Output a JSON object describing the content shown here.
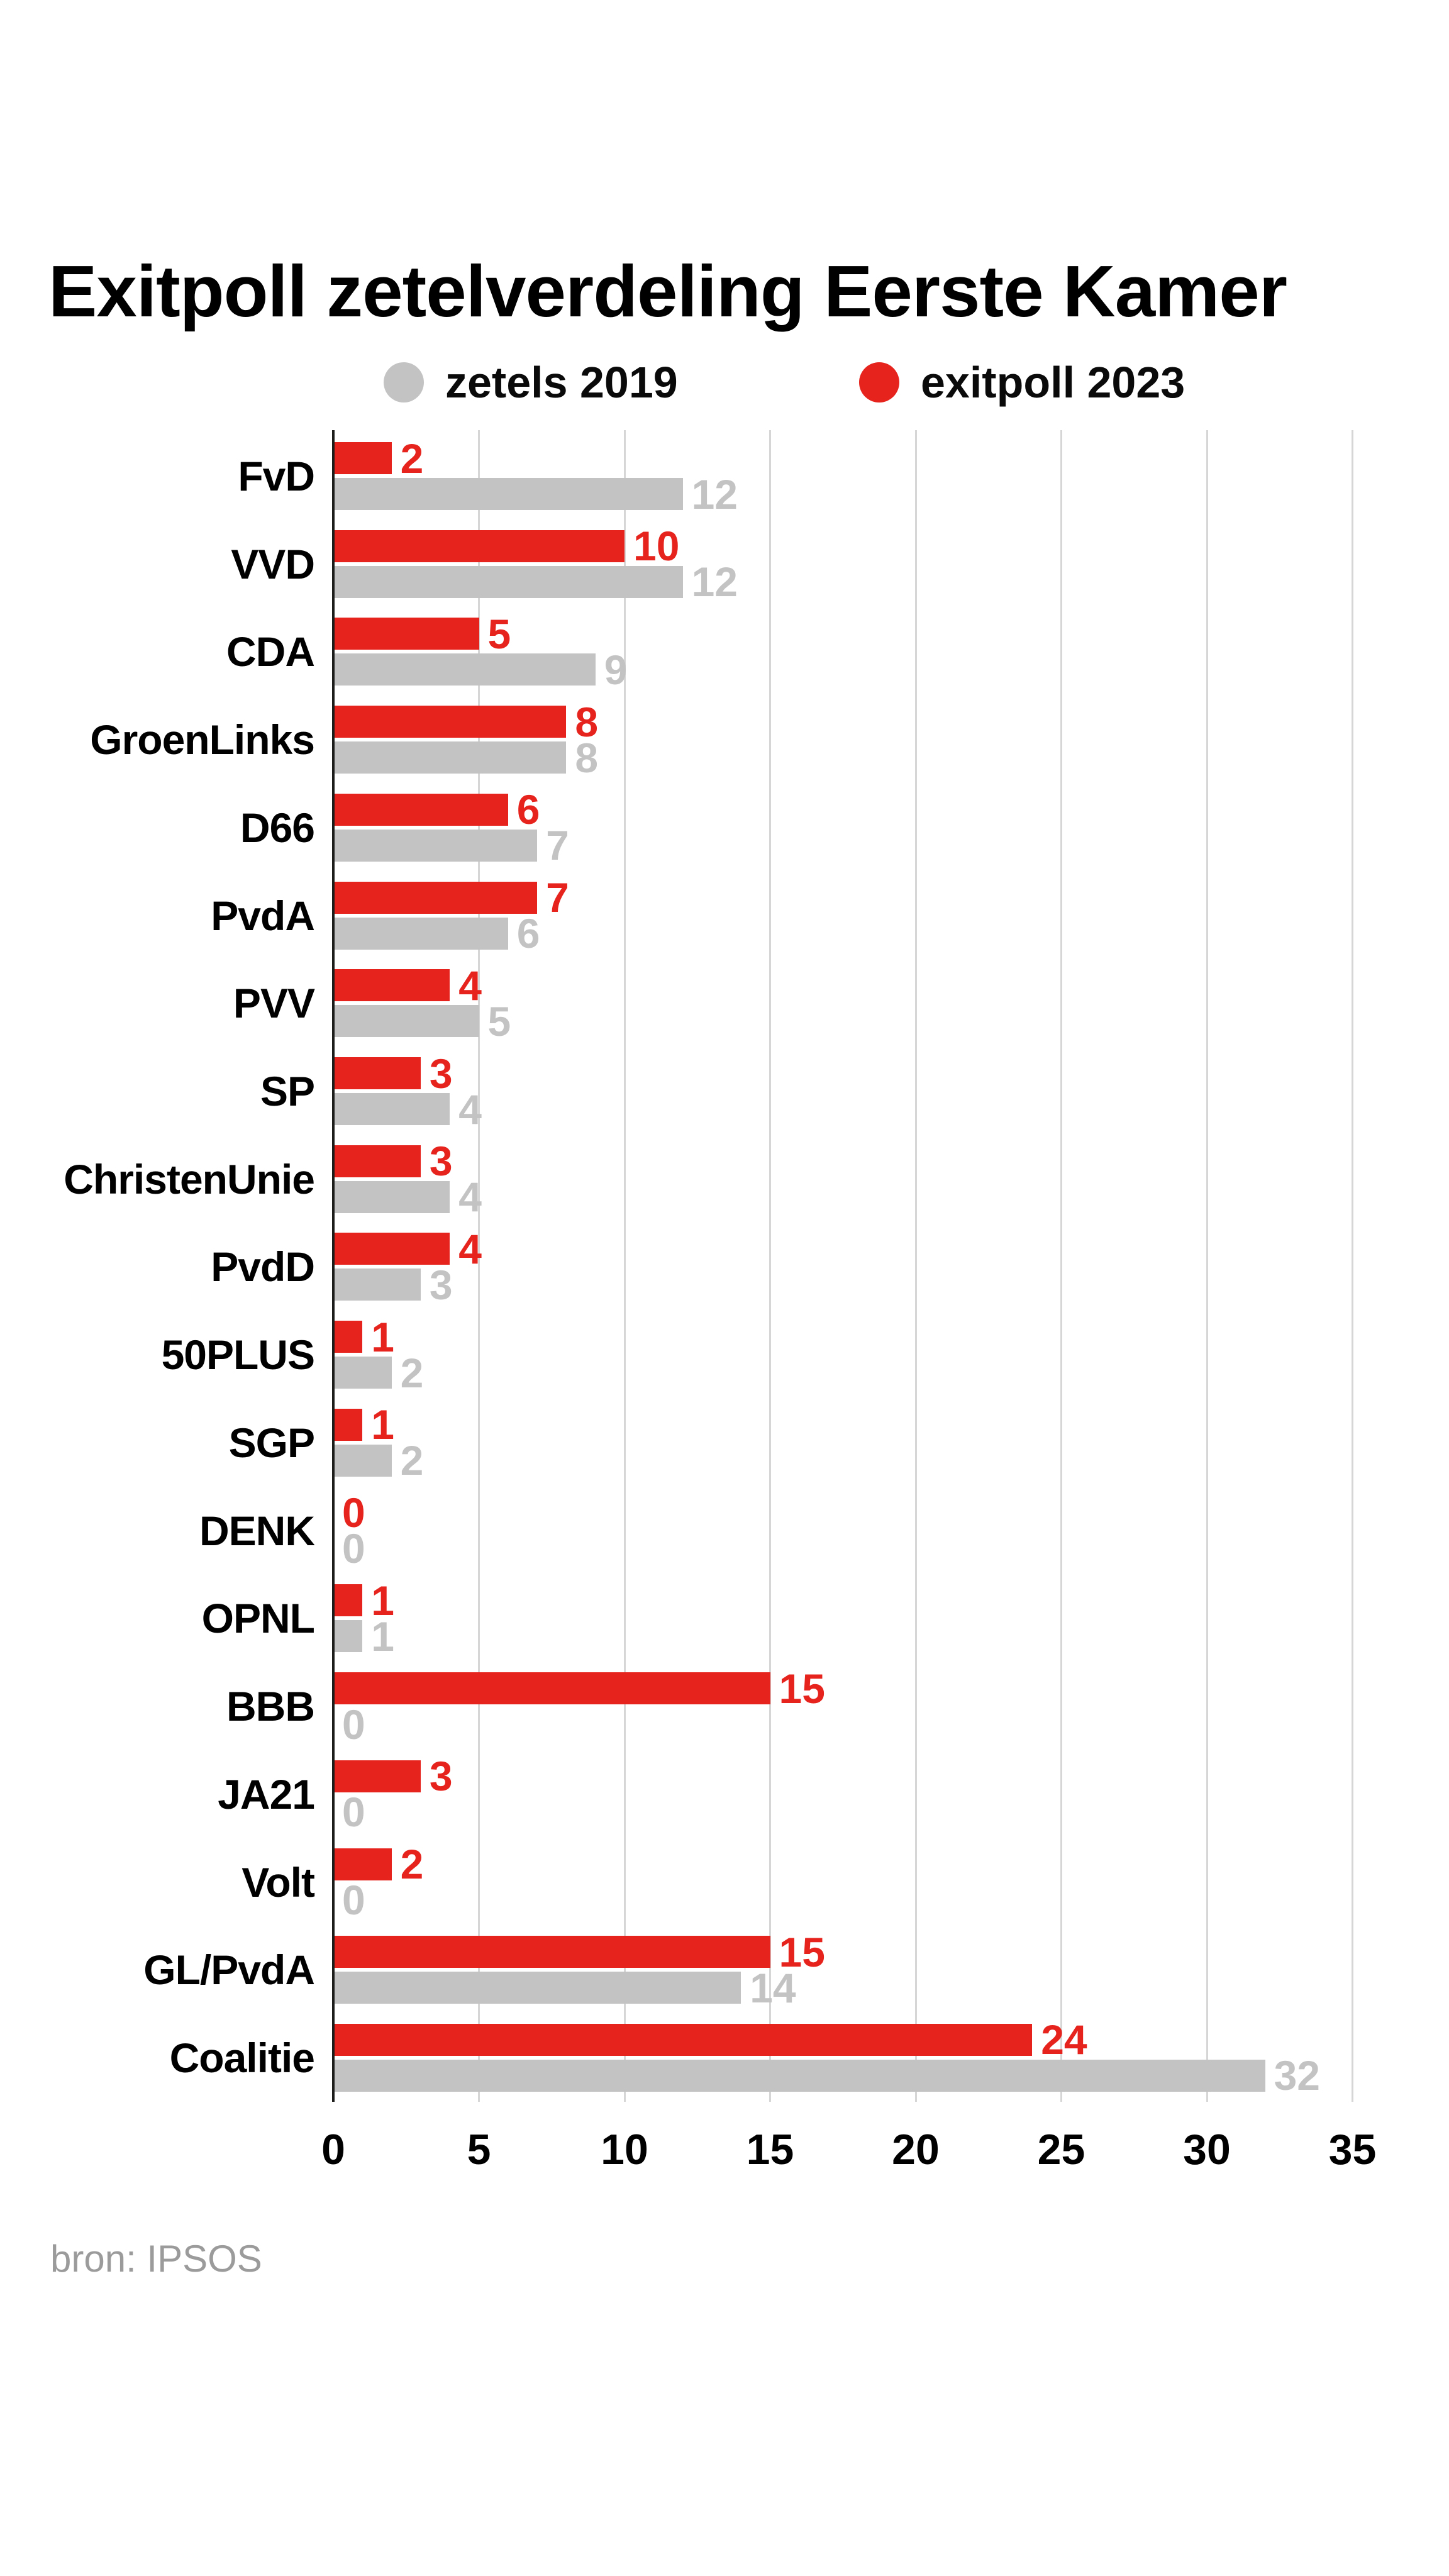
{
  "title": "Exitpoll zetelverdeling Eerste Kamer",
  "source": "bron: IPSOS",
  "legend": {
    "items": [
      {
        "label": "zetels 2019",
        "color": "#c3c3c3"
      },
      {
        "label": "exitpoll 2023",
        "color": "#e6231d"
      }
    ]
  },
  "colors": {
    "background": "#ffffff",
    "bar_exitpoll_2023": "#e6231d",
    "bar_zetels_2019": "#c3c3c3",
    "axis": "#1d1d1b",
    "gridline": "#d6d6d6",
    "party_label": "#000000",
    "tick_label": "#000000",
    "source_label": "#9b9b9b"
  },
  "chart_data": {
    "type": "bar",
    "orientation": "horizontal",
    "title": "Exitpoll zetelverdeling Eerste Kamer",
    "categories": [
      "FvD",
      "VVD",
      "CDA",
      "GroenLinks",
      "D66",
      "PvdA",
      "PVV",
      "SP",
      "ChristenUnie",
      "PvdD",
      "50PLUS",
      "SGP",
      "DENK",
      "OPNL",
      "BBB",
      "JA21",
      "Volt",
      "GL/PvdA",
      "Coalitie"
    ],
    "series": [
      {
        "name": "exitpoll 2023",
        "color": "#e6231d",
        "values": [
          2,
          10,
          5,
          8,
          6,
          7,
          4,
          3,
          3,
          4,
          1,
          1,
          0,
          1,
          15,
          3,
          2,
          15,
          24
        ]
      },
      {
        "name": "zetels 2019",
        "color": "#c3c3c3",
        "values": [
          12,
          12,
          9,
          8,
          7,
          6,
          5,
          4,
          4,
          3,
          2,
          2,
          0,
          1,
          0,
          0,
          0,
          14,
          32
        ]
      }
    ],
    "xlim": [
      0,
      35
    ],
    "xticks": [
      0,
      5,
      10,
      15,
      20,
      25,
      30,
      35
    ],
    "grid": true,
    "legend_position": "top",
    "value_labels": true
  }
}
